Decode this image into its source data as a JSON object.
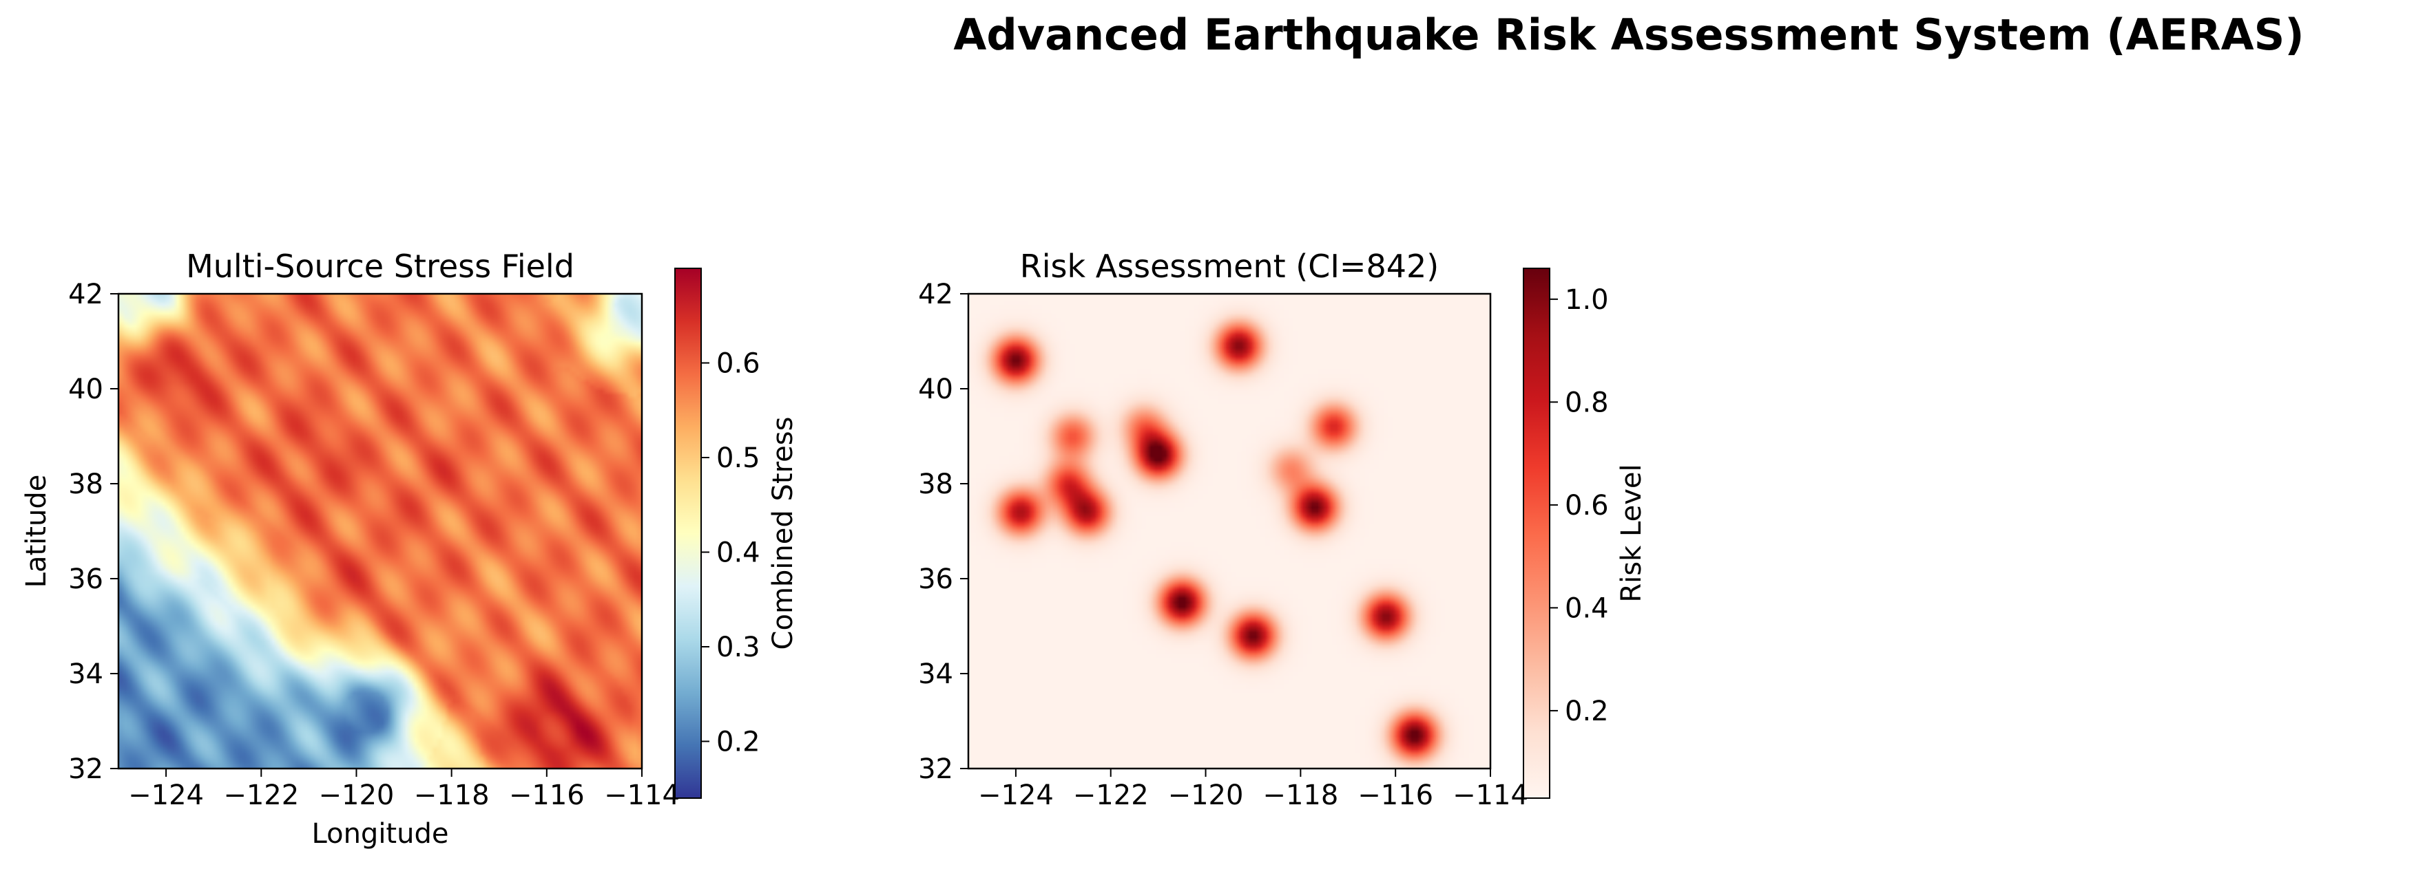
{
  "figure": {
    "title": "Advanced Earthquake Risk Assessment System (AERAS)"
  },
  "chart_data": [
    {
      "type": "heatmap",
      "title": "Multi-Source Stress Field",
      "xlabel": "Longitude",
      "ylabel": "Latitude",
      "xlim": [
        -125,
        -114
      ],
      "ylim": [
        32,
        42
      ],
      "xticks": [
        -124,
        -122,
        -120,
        -118,
        -116,
        -114
      ],
      "yticks": [
        32,
        34,
        36,
        38,
        40,
        42
      ],
      "colormap": "RdYlBu_r",
      "colorbar": {
        "label": "Combined Stress",
        "range": [
          0.14,
          0.7
        ],
        "ticks": [
          0.2,
          0.3,
          0.4,
          0.5,
          0.6
        ]
      },
      "features": [
        {
          "lon": -121.0,
          "lat": 38.5,
          "value": 0.62
        },
        {
          "lon": -118.5,
          "lat": 38.0,
          "value": 0.6
        },
        {
          "lon": -123.8,
          "lat": 40.6,
          "value": 0.65
        },
        {
          "lon": -119.5,
          "lat": 40.5,
          "value": 0.58
        },
        {
          "lon": -117.5,
          "lat": 40.8,
          "value": 0.57
        },
        {
          "lon": -120.2,
          "lat": 36.0,
          "value": 0.6
        },
        {
          "lon": -116.0,
          "lat": 36.5,
          "value": 0.58
        },
        {
          "lon": -115.8,
          "lat": 32.8,
          "value": 0.68
        },
        {
          "lon": -117.0,
          "lat": 35.0,
          "value": 0.56
        },
        {
          "lon": -122.5,
          "lat": 38.8,
          "value": 0.58
        },
        {
          "lon": -124.0,
          "lat": 34.5,
          "value": 0.25
        },
        {
          "lon": -122.0,
          "lat": 33.0,
          "value": 0.24
        },
        {
          "lon": -119.8,
          "lat": 33.2,
          "value": 0.16
        },
        {
          "lon": -124.5,
          "lat": 42.0,
          "value": 0.3
        },
        {
          "lon": -114.2,
          "lat": 41.5,
          "value": 0.32
        }
      ]
    },
    {
      "type": "heatmap",
      "title": "Risk Assessment (CI=842)",
      "xlabel": "",
      "ylabel": "",
      "xlim": [
        -125,
        -114
      ],
      "ylim": [
        32,
        42
      ],
      "xticks": [
        -124,
        -122,
        -120,
        -118,
        -116,
        -114
      ],
      "yticks": [
        32,
        34,
        36,
        38,
        40,
        42
      ],
      "colormap": "Reds",
      "colorbar": {
        "label": "Risk Level",
        "range": [
          0.03,
          1.06
        ],
        "ticks": [
          0.2,
          0.4,
          0.6,
          0.8,
          1.0
        ]
      },
      "hotspots": [
        {
          "lon": -124.0,
          "lat": 40.6,
          "value": 1.0
        },
        {
          "lon": -119.3,
          "lat": 40.9,
          "value": 0.95
        },
        {
          "lon": -121.0,
          "lat": 38.6,
          "value": 1.05
        },
        {
          "lon": -122.8,
          "lat": 39.0,
          "value": 0.55
        },
        {
          "lon": -122.9,
          "lat": 38.0,
          "value": 0.65
        },
        {
          "lon": -123.9,
          "lat": 37.4,
          "value": 0.85
        },
        {
          "lon": -122.5,
          "lat": 37.4,
          "value": 0.85
        },
        {
          "lon": -121.3,
          "lat": 39.2,
          "value": 0.45
        },
        {
          "lon": -117.7,
          "lat": 37.5,
          "value": 1.0
        },
        {
          "lon": -117.3,
          "lat": 39.2,
          "value": 0.7
        },
        {
          "lon": -118.2,
          "lat": 38.3,
          "value": 0.4
        },
        {
          "lon": -120.5,
          "lat": 35.5,
          "value": 1.05
        },
        {
          "lon": -119.0,
          "lat": 34.8,
          "value": 1.0
        },
        {
          "lon": -116.2,
          "lat": 35.2,
          "value": 0.95
        },
        {
          "lon": -115.6,
          "lat": 32.7,
          "value": 1.05
        }
      ]
    }
  ]
}
